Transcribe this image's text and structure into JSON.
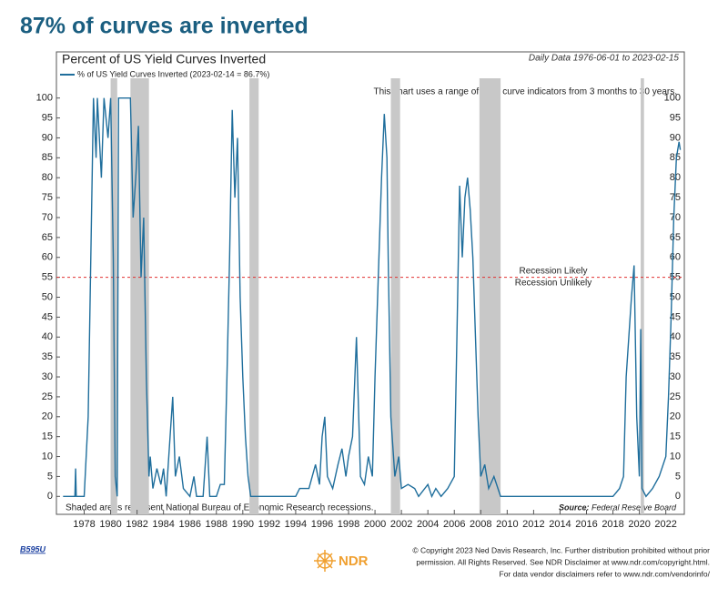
{
  "headline": "87% of curves are inverted",
  "chart_data": {
    "type": "line",
    "title": "Percent of US Yield Curves Inverted",
    "subtitle": "Daily Data 1976-06-01 to 2023-02-15",
    "note": "This chart uses a range of yield curve indicators from 3 months to 30 years.",
    "threshold": 55,
    "threshold_above_label": "Recession Likely",
    "threshold_below_label": "Recession Unlikely",
    "shading_note": "Shaded areas represent National Bureau of Economic Research recessions.",
    "source_label": "Source:",
    "source": "Federal Reserve Board",
    "recessions": [
      {
        "start": 1980.0,
        "end": 1980.5
      },
      {
        "start": 1981.5,
        "end": 1982.9
      },
      {
        "start": 1990.5,
        "end": 1991.2
      },
      {
        "start": 2001.2,
        "end": 2001.9
      },
      {
        "start": 2007.9,
        "end": 2009.5
      },
      {
        "start": 2020.1,
        "end": 2020.35
      }
    ],
    "x": [
      1976.4,
      1977.3,
      1977.35,
      1977.4,
      1978.0,
      1978.3,
      1978.5,
      1978.7,
      1978.9,
      1979.0,
      1979.3,
      1979.5,
      1979.8,
      1980.0,
      1980.2,
      1980.35,
      1980.5,
      1980.6,
      1980.9,
      1981.2,
      1981.5,
      1981.7,
      1981.9,
      1982.1,
      1982.3,
      1982.5,
      1982.7,
      1982.9,
      1983.0,
      1983.2,
      1983.5,
      1983.8,
      1984.0,
      1984.2,
      1984.5,
      1984.7,
      1984.9,
      1985.2,
      1985.5,
      1986.0,
      1986.3,
      1986.5,
      1987.0,
      1987.3,
      1987.5,
      1988.0,
      1988.3,
      1988.6,
      1988.8,
      1989.0,
      1989.2,
      1989.4,
      1989.6,
      1989.8,
      1990.0,
      1990.2,
      1990.4,
      1990.6,
      1991.0,
      1993.0,
      1994.0,
      1994.3,
      1995.0,
      1995.5,
      1995.8,
      1996.0,
      1996.2,
      1996.4,
      1996.8,
      1997.2,
      1997.5,
      1997.8,
      1998.0,
      1998.3,
      1998.6,
      1998.9,
      1999.2,
      1999.5,
      1999.8,
      2000.0,
      2000.3,
      2000.5,
      2000.7,
      2000.9,
      2001.0,
      2001.2,
      2001.5,
      2001.8,
      2002.0,
      2002.5,
      2003.0,
      2003.3,
      2004.0,
      2004.3,
      2004.6,
      2005.0,
      2005.5,
      2006.0,
      2006.2,
      2006.4,
      2006.6,
      2006.8,
      2007.0,
      2007.2,
      2007.4,
      2007.6,
      2007.8,
      2008.0,
      2008.3,
      2008.6,
      2009.0,
      2009.3,
      2009.5,
      2012.0,
      2016.0,
      2018.0,
      2018.5,
      2018.8,
      2019.0,
      2019.2,
      2019.4,
      2019.6,
      2019.8,
      2020.0,
      2020.1,
      2020.2,
      2020.5,
      2021.0,
      2021.5,
      2022.0,
      2022.2,
      2022.4,
      2022.6,
      2022.8,
      2023.0,
      2023.1
    ],
    "series": [
      {
        "name": "% of US Yield Curves Inverted (2023-02-14 = 86.7%)",
        "color": "#1f6e9c",
        "values": [
          0,
          0,
          7,
          0,
          0,
          20,
          60,
          100,
          85,
          100,
          80,
          100,
          90,
          100,
          60,
          5,
          0,
          100,
          100,
          100,
          100,
          70,
          80,
          93,
          55,
          70,
          30,
          5,
          10,
          2,
          7,
          3,
          7,
          0,
          15,
          25,
          5,
          10,
          2,
          0,
          5,
          0,
          0,
          15,
          0,
          0,
          3,
          3,
          30,
          60,
          97,
          75,
          90,
          50,
          30,
          15,
          5,
          0,
          0,
          0,
          0,
          2,
          2,
          8,
          3,
          15,
          20,
          5,
          2,
          8,
          12,
          5,
          10,
          15,
          40,
          5,
          3,
          10,
          5,
          30,
          60,
          80,
          96,
          85,
          60,
          20,
          5,
          10,
          2,
          3,
          2,
          0,
          3,
          0,
          2,
          0,
          2,
          5,
          40,
          78,
          60,
          75,
          80,
          72,
          60,
          40,
          20,
          5,
          8,
          2,
          5,
          2,
          0,
          0,
          0,
          0,
          2,
          5,
          30,
          40,
          50,
          58,
          20,
          5,
          42,
          2,
          0,
          2,
          5,
          10,
          25,
          45,
          70,
          85,
          89,
          87
        ]
      }
    ],
    "xlim": [
      1975.9,
      2023.4
    ],
    "xticks": [
      1978,
      1980,
      1982,
      1984,
      1986,
      1988,
      1990,
      1992,
      1994,
      1996,
      1998,
      2000,
      2002,
      2004,
      2006,
      2008,
      2010,
      2012,
      2014,
      2016,
      2018,
      2020,
      2022
    ],
    "ylim": [
      -4.5,
      104.5
    ],
    "yticks": [
      0,
      5,
      10,
      15,
      20,
      25,
      30,
      35,
      40,
      45,
      50,
      55,
      60,
      65,
      70,
      75,
      80,
      85,
      90,
      95,
      100
    ]
  },
  "footer": {
    "code": "B595U",
    "logo": "NDR",
    "lines": [
      "© Copyright 2023 Ned Davis Research, Inc. Further distribution prohibited without prior",
      "permission. All Rights Reserved. See NDR Disclaimer at  www.ndr.com/copyright.html.",
      "For data vendor disclaimers refer to www.ndr.com/vendorinfo/"
    ]
  }
}
